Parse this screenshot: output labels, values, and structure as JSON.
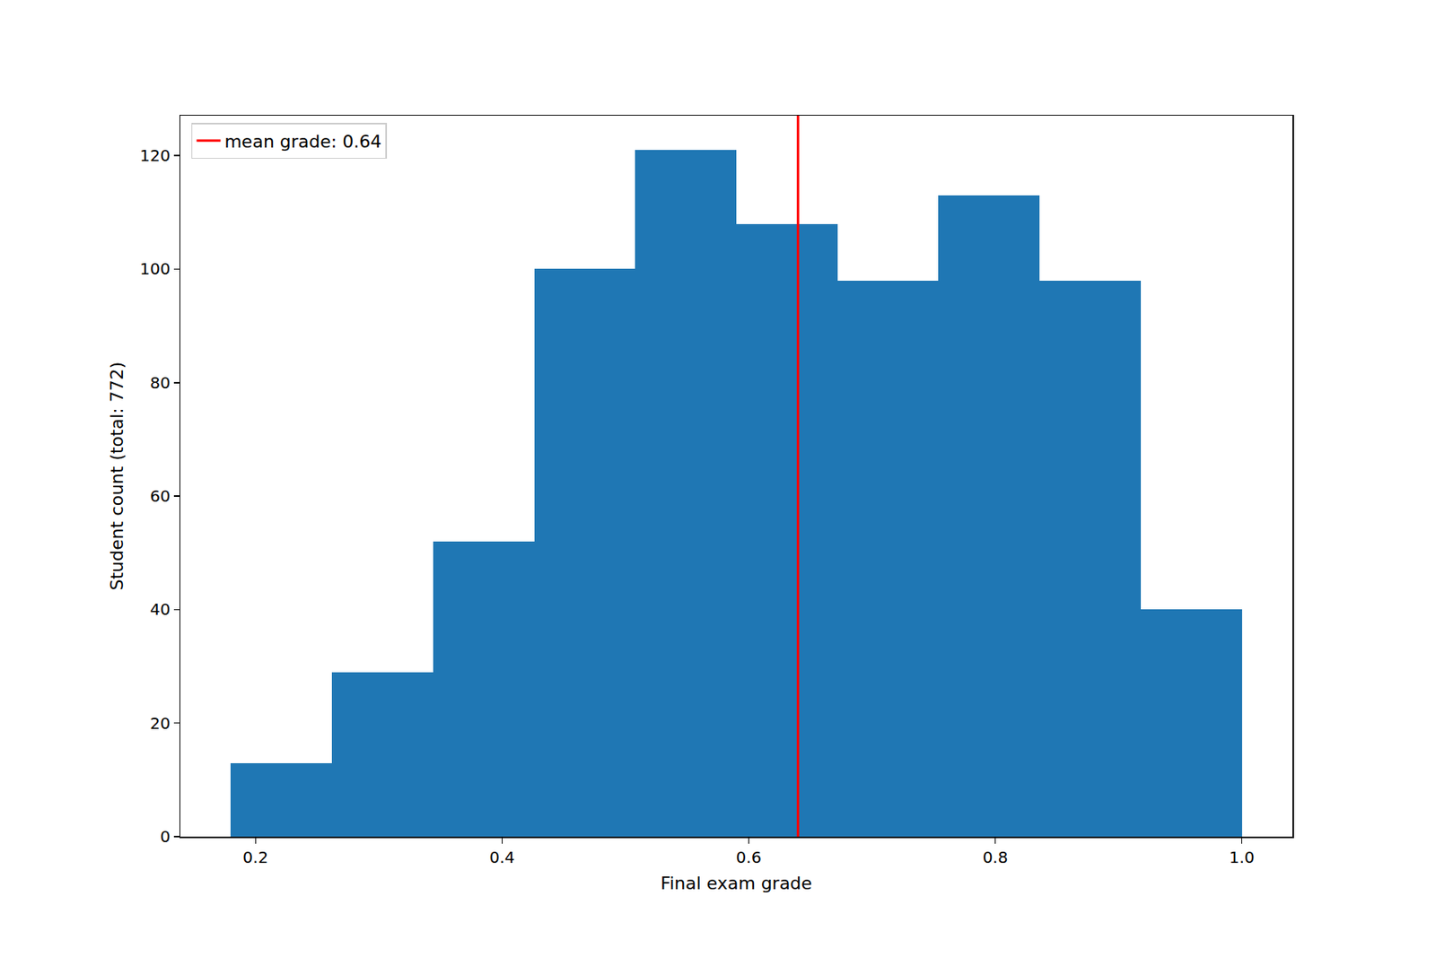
{
  "chart_data": {
    "type": "histogram",
    "xlabel": "Final exam grade",
    "ylabel": "Student count (total: 772)",
    "bins": [
      0.18,
      0.262,
      0.344,
      0.426,
      0.508,
      0.59,
      0.672,
      0.754,
      0.836,
      0.918,
      1.0
    ],
    "values": [
      13,
      29,
      52,
      100,
      121,
      108,
      98,
      113,
      98,
      40
    ],
    "color": "#1f77b4",
    "mean_line": {
      "name": "mean grade: 0.64",
      "value": 0.64,
      "color": "#ff0000"
    },
    "xlim": [
      0.139,
      1.041
    ],
    "ylim": [
      0,
      127.05
    ],
    "xticks": [
      0.2,
      0.4,
      0.6,
      0.8,
      {
        "value": 1.0,
        "label": "1.0"
      }
    ],
    "yticks": [
      0,
      20,
      40,
      60,
      80,
      100,
      120
    ],
    "grid": false,
    "legend": "upper left"
  }
}
